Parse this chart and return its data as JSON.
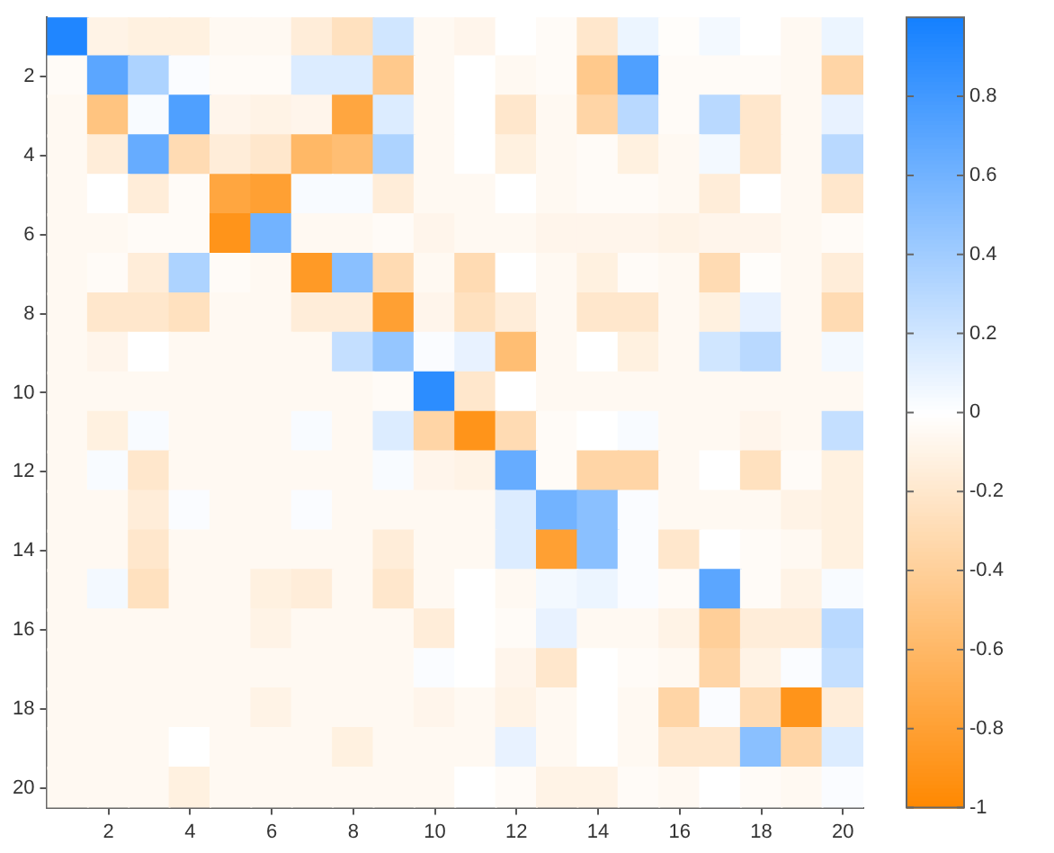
{
  "chart_data": {
    "type": "heatmap",
    "categories": [
      null,
      "2",
      null,
      "4",
      null,
      "6",
      null,
      "8",
      null,
      "10",
      null,
      "12",
      null,
      "14",
      null,
      "16",
      null,
      "18",
      null,
      "20"
    ],
    "y_categories": [
      null,
      "2",
      null,
      "4",
      null,
      "6",
      null,
      "8",
      null,
      "10",
      null,
      "12",
      null,
      "14",
      null,
      "16",
      null,
      "18",
      null,
      "20"
    ],
    "clim": [
      -1,
      1
    ],
    "cticks": [
      -1,
      -0.8,
      -0.6,
      -0.4,
      -0.2,
      0,
      0.2,
      0.4,
      0.6,
      0.8
    ],
    "cells": [
      [
        0.95,
        -0.1,
        -0.12,
        -0.12,
        -0.05,
        -0.05,
        -0.15,
        -0.25,
        0.2,
        -0.05,
        -0.08,
        0,
        -0.03,
        -0.2,
        0.08,
        -0.02,
        0.05,
        0,
        -0.05,
        0.08
      ],
      [
        -0.03,
        0.7,
        0.35,
        0.02,
        -0.03,
        -0.03,
        0.15,
        0.15,
        -0.45,
        -0.05,
        0,
        -0.05,
        -0.03,
        -0.45,
        0.75,
        -0.03,
        -0.03,
        -0.03,
        -0.05,
        -0.35
      ],
      [
        -0.05,
        -0.5,
        0.03,
        0.75,
        -0.08,
        -0.1,
        -0.08,
        -0.75,
        0.15,
        -0.05,
        0,
        -0.2,
        -0.05,
        -0.35,
        0.3,
        -0.03,
        0.3,
        -0.2,
        -0.05,
        0.1
      ],
      [
        -0.05,
        -0.15,
        0.65,
        -0.3,
        -0.15,
        -0.2,
        -0.6,
        -0.55,
        0.35,
        -0.05,
        0,
        -0.12,
        -0.05,
        -0.03,
        -0.12,
        -0.05,
        0.05,
        -0.2,
        -0.05,
        0.3
      ],
      [
        -0.05,
        0,
        -0.15,
        -0.03,
        -0.75,
        -0.8,
        0.03,
        0.03,
        -0.15,
        -0.05,
        -0.05,
        0,
        -0.05,
        -0.03,
        -0.03,
        -0.05,
        -0.15,
        0,
        -0.05,
        -0.2
      ],
      [
        -0.05,
        -0.05,
        -0.03,
        -0.03,
        -0.9,
        0.6,
        -0.05,
        -0.05,
        -0.03,
        -0.08,
        -0.05,
        -0.05,
        -0.08,
        -0.08,
        -0.08,
        -0.1,
        -0.08,
        -0.08,
        -0.05,
        -0.03
      ],
      [
        -0.05,
        -0.03,
        -0.15,
        0.35,
        -0.03,
        -0.05,
        -0.85,
        0.5,
        -0.3,
        -0.05,
        -0.3,
        0,
        -0.05,
        -0.12,
        -0.03,
        -0.05,
        -0.3,
        -0.02,
        -0.05,
        -0.15
      ],
      [
        -0.05,
        -0.2,
        -0.2,
        -0.25,
        -0.05,
        -0.05,
        -0.15,
        -0.15,
        -0.8,
        -0.08,
        -0.25,
        -0.15,
        -0.05,
        -0.2,
        -0.2,
        -0.05,
        -0.12,
        0.1,
        -0.05,
        -0.3
      ],
      [
        -0.05,
        -0.08,
        0,
        -0.05,
        -0.05,
        -0.05,
        -0.05,
        0.25,
        0.45,
        0.02,
        0.1,
        -0.55,
        -0.05,
        0,
        -0.12,
        -0.05,
        0.2,
        0.3,
        -0.05,
        0.05
      ],
      [
        -0.05,
        -0.05,
        -0.05,
        -0.05,
        -0.05,
        -0.05,
        -0.05,
        -0.05,
        -0.03,
        0.9,
        -0.2,
        0,
        -0.05,
        -0.05,
        -0.05,
        -0.05,
        -0.05,
        -0.05,
        -0.05,
        -0.05
      ],
      [
        -0.05,
        -0.12,
        0.03,
        -0.05,
        -0.05,
        -0.05,
        0.03,
        -0.05,
        0.15,
        -0.35,
        -0.9,
        -0.3,
        -0.03,
        0,
        0.03,
        -0.05,
        -0.05,
        -0.08,
        -0.05,
        0.25
      ],
      [
        -0.05,
        0.03,
        -0.2,
        -0.05,
        -0.05,
        -0.05,
        -0.05,
        -0.05,
        0.03,
        -0.08,
        -0.1,
        0.65,
        -0.03,
        -0.35,
        -0.35,
        -0.05,
        0,
        -0.25,
        -0.03,
        -0.12
      ],
      [
        -0.05,
        -0.05,
        -0.15,
        0.02,
        -0.05,
        -0.05,
        0.02,
        -0.05,
        -0.05,
        -0.05,
        -0.05,
        0.15,
        0.6,
        0.5,
        0.02,
        -0.05,
        -0.05,
        -0.05,
        -0.1,
        -0.12
      ],
      [
        -0.05,
        -0.05,
        -0.2,
        -0.05,
        -0.05,
        -0.05,
        -0.05,
        -0.05,
        -0.15,
        -0.05,
        -0.05,
        0.15,
        -0.8,
        0.5,
        0.02,
        -0.2,
        0,
        -0.03,
        -0.05,
        -0.12
      ],
      [
        -0.05,
        0.05,
        -0.25,
        -0.05,
        -0.05,
        -0.12,
        -0.15,
        -0.05,
        -0.2,
        -0.05,
        0,
        -0.05,
        0.05,
        0.08,
        0.02,
        -0.03,
        0.7,
        -0.03,
        -0.1,
        0.03
      ],
      [
        -0.05,
        -0.05,
        -0.05,
        -0.05,
        -0.05,
        -0.1,
        -0.05,
        -0.05,
        -0.05,
        -0.15,
        0,
        -0.03,
        0.1,
        -0.05,
        -0.05,
        -0.1,
        -0.4,
        -0.15,
        -0.15,
        0.3
      ],
      [
        -0.05,
        -0.05,
        -0.05,
        -0.05,
        -0.05,
        -0.05,
        -0.05,
        -0.05,
        -0.05,
        0.02,
        0,
        -0.08,
        -0.2,
        0,
        -0.03,
        -0.05,
        -0.35,
        -0.1,
        0.02,
        0.25
      ],
      [
        -0.05,
        -0.05,
        -0.05,
        -0.05,
        -0.05,
        -0.1,
        -0.05,
        -0.05,
        -0.05,
        -0.08,
        -0.05,
        -0.1,
        -0.05,
        0,
        -0.05,
        -0.35,
        0.02,
        -0.3,
        -0.9,
        -0.15
      ],
      [
        -0.05,
        -0.05,
        -0.05,
        0,
        -0.05,
        -0.05,
        -0.05,
        -0.12,
        -0.05,
        -0.05,
        -0.05,
        0.1,
        -0.05,
        0,
        -0.05,
        -0.2,
        -0.2,
        0.5,
        -0.35,
        0.15
      ],
      [
        -0.05,
        -0.05,
        -0.05,
        -0.12,
        -0.05,
        -0.05,
        -0.05,
        -0.05,
        -0.05,
        -0.05,
        0,
        -0.03,
        -0.1,
        -0.1,
        -0.03,
        -0.05,
        0,
        -0.03,
        -0.05,
        0.02
      ]
    ]
  }
}
